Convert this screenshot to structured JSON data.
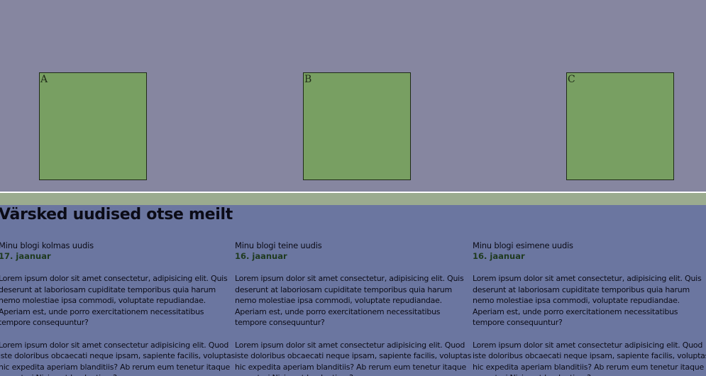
{
  "boxes": [
    {
      "label": "A"
    },
    {
      "label": "B"
    },
    {
      "label": "C"
    }
  ],
  "colors": {
    "background": "#8686a0",
    "box_fill": "#789f62",
    "news_background": "#6b76a0",
    "divider_green": "#9bab8f"
  },
  "news": {
    "title": "Värsked uudised otse meilt",
    "posts": [
      {
        "title": "Minu blogi kolmas uudis",
        "date": "17. jaanuar",
        "paragraphs": [
          "Lorem ipsum dolor sit amet consectetur, adipisicing elit. Quis deserunt at laboriosam cupiditate temporibus quia harum nemo molestiae ipsa commodi, voluptate repudiandae. Aperiam est, unde porro exercitationem necessitatibus tempore consequuntur?",
          "Lorem ipsum dolor sit amet consectetur adipisicing elit. Quod iste doloribus obcaecati neque ipsam, sapiente facilis, voluptas hic expedita aperiam blanditiis? Ab rerum eum tenetur itaque excepturi Nisi sunt laudantium?"
        ]
      },
      {
        "title": "Minu blogi teine uudis",
        "date": "16. jaanuar",
        "paragraphs": [
          "Lorem ipsum dolor sit amet consectetur, adipisicing elit. Quis deserunt at laboriosam cupiditate temporibus quia harum nemo molestiae ipsa commodi, voluptate repudiandae. Aperiam est, unde porro exercitationem necessitatibus tempore consequuntur?",
          "Lorem ipsum dolor sit amet consectetur adipisicing elit. Quod iste doloribus obcaecati neque ipsam, sapiente facilis, voluptas hic expedita aperiam blanditiis? Ab rerum eum tenetur itaque excepturi Nisi sunt laudantium?"
        ]
      },
      {
        "title": "Minu blogi esimene uudis",
        "date": "16. jaanuar",
        "paragraphs": [
          "Lorem ipsum dolor sit amet consectetur, adipisicing elit. Quis deserunt at laboriosam cupiditate temporibus quia harum nemo molestiae ipsa commodi, voluptate repudiandae. Aperiam est, unde porro exercitationem necessitatibus tempore consequuntur?",
          "Lorem ipsum dolor sit amet consectetur adipisicing elit. Quod iste doloribus obcaecati neque ipsam, sapiente facilis, voluptas hic expedita aperiam blanditiis? Ab rerum eum tenetur itaque excepturi Nisi sunt laudantium?"
        ]
      }
    ]
  }
}
